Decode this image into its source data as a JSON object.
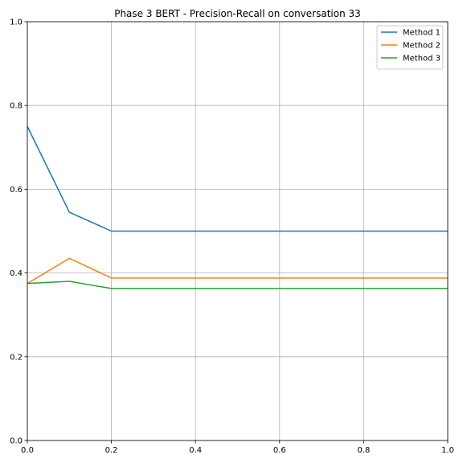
{
  "chart_data": {
    "type": "line",
    "title": "Phase 3 BERT - Precision-Recall on conversation 33",
    "xlabel": "",
    "ylabel": "",
    "xlim": [
      0,
      1
    ],
    "ylim": [
      0,
      1
    ],
    "xticks": [
      "0.0",
      "0.2",
      "0.4",
      "0.6",
      "0.8",
      "1.0"
    ],
    "yticks": [
      "0.0",
      "0.2",
      "0.4",
      "0.6",
      "0.8",
      "1.0"
    ],
    "grid": true,
    "legend_position": "top-right",
    "x": [
      0.0,
      0.1,
      0.2,
      0.3,
      0.4,
      0.5,
      0.6,
      0.7,
      0.8,
      0.9,
      1.0
    ],
    "series": [
      {
        "name": "Method 1",
        "color": "#1f77b4",
        "values": [
          0.75,
          0.545,
          0.5,
          0.5,
          0.5,
          0.5,
          0.5,
          0.5,
          0.5,
          0.5,
          0.5
        ]
      },
      {
        "name": "Method 2",
        "color": "#ff7f0e",
        "values": [
          0.375,
          0.435,
          0.388,
          0.388,
          0.388,
          0.388,
          0.388,
          0.388,
          0.388,
          0.388,
          0.388
        ]
      },
      {
        "name": "Method 3",
        "color": "#2ca02c",
        "values": [
          0.375,
          0.38,
          0.363,
          0.363,
          0.363,
          0.363,
          0.363,
          0.363,
          0.363,
          0.363,
          0.363
        ]
      }
    ]
  }
}
